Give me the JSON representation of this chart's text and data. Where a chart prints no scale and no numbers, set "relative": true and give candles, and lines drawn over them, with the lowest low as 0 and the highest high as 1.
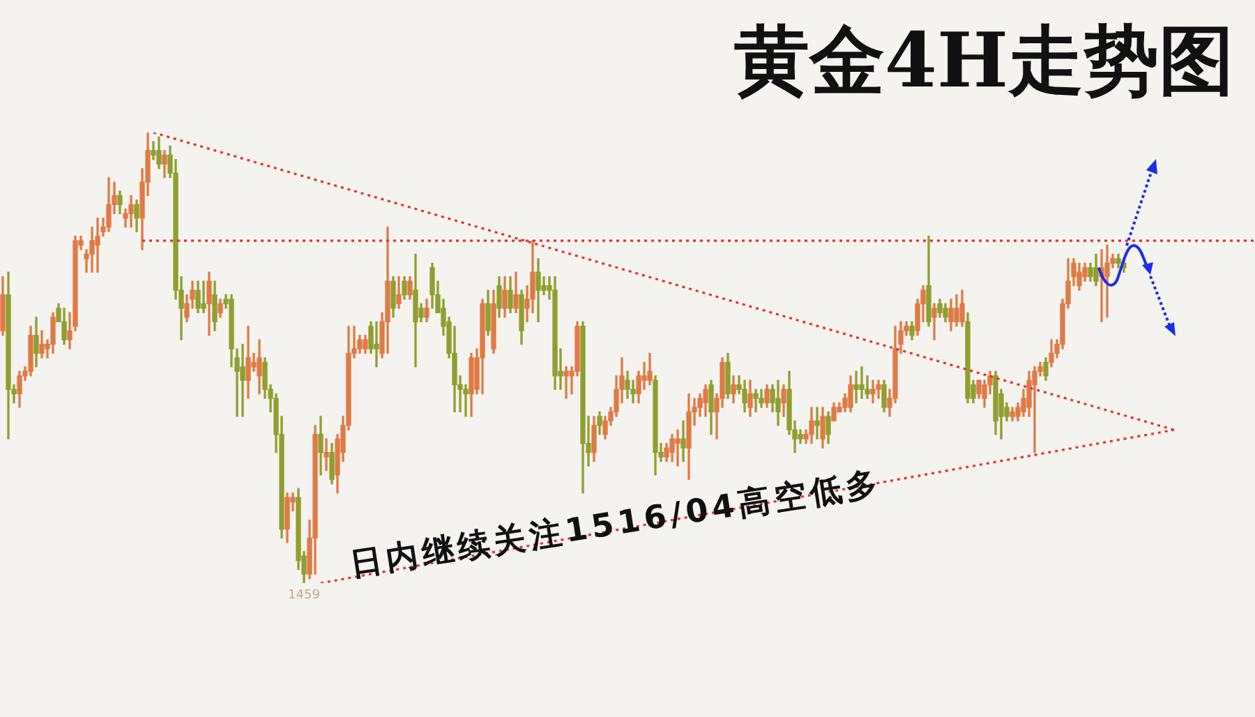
{
  "chart_data": {
    "type": "candlestick",
    "title": "黄金4H走势图",
    "relative": true,
    "tick_labels": false,
    "legend": false,
    "categories": [
      null,
      null,
      null,
      null,
      null,
      null,
      null,
      null,
      null,
      null,
      null,
      null,
      null,
      null,
      null,
      null,
      null,
      null,
      null,
      null,
      null,
      null,
      null,
      null,
      null,
      null,
      null,
      null,
      null,
      null,
      null,
      null,
      null,
      null,
      null,
      null,
      null,
      null,
      null,
      null,
      null,
      null,
      null,
      null,
      null,
      null,
      null,
      null,
      null,
      null,
      null,
      null,
      null,
      null,
      null,
      null,
      null,
      null,
      null,
      null,
      null,
      null,
      null,
      null,
      null,
      null,
      null,
      null,
      null,
      null,
      null,
      null,
      null,
      null,
      null,
      null,
      null,
      null,
      null,
      null,
      null,
      null,
      null,
      null,
      null,
      null,
      null,
      null,
      null,
      null,
      null,
      null,
      null,
      null,
      null,
      null,
      null,
      null,
      null,
      null,
      null,
      null,
      null,
      null,
      null,
      null,
      null,
      null,
      null,
      null,
      null,
      null,
      null,
      null,
      null,
      null,
      null,
      null,
      null,
      null,
      null,
      null,
      null,
      null,
      null,
      null,
      null,
      null,
      null,
      null,
      null,
      null,
      null,
      null,
      null,
      null,
      null,
      null,
      null,
      null,
      null,
      null,
      null,
      null,
      null,
      null,
      null,
      null,
      null,
      null,
      null,
      null,
      null,
      null,
      null,
      null,
      null,
      null,
      null,
      null,
      null,
      null,
      null,
      null,
      null,
      null,
      null,
      null,
      null,
      null,
      null,
      null,
      null,
      null,
      null,
      null,
      null,
      null,
      null,
      null,
      null,
      null,
      null,
      null,
      null,
      null,
      null,
      null,
      null,
      null,
      null,
      null,
      null,
      null,
      null,
      null,
      null,
      null,
      null,
      null,
      null,
      null,
      null,
      null,
      null,
      null,
      null,
      null,
      null,
      null,
      null,
      null,
      null,
      null,
      null,
      null,
      null,
      null,
      null,
      null,
      null,
      null,
      null,
      null,
      null
    ],
    "series": [
      {
        "type": "candlestick",
        "ohlc": [
          [
            0.56,
            0.68,
            0.55,
            0.64
          ],
          [
            0.64,
            0.69,
            0.32,
            0.43
          ],
          [
            0.43,
            0.44,
            0.4,
            0.42
          ],
          [
            0.42,
            0.47,
            0.39,
            0.46
          ],
          [
            0.46,
            0.48,
            0.45,
            0.47
          ],
          [
            0.47,
            0.57,
            0.46,
            0.55
          ],
          [
            0.55,
            0.59,
            0.48,
            0.51
          ],
          [
            0.51,
            0.56,
            0.5,
            0.53
          ],
          [
            0.52,
            0.54,
            0.5,
            0.53
          ],
          [
            0.53,
            0.6,
            0.51,
            0.59
          ],
          [
            0.61,
            0.62,
            0.58,
            0.58
          ],
          [
            0.58,
            0.61,
            0.53,
            0.54
          ],
          [
            0.54,
            0.6,
            0.52,
            0.56
          ],
          [
            0.57,
            0.77,
            0.56,
            0.76
          ],
          [
            0.75,
            0.77,
            0.74,
            0.76
          ],
          [
            0.72,
            0.74,
            0.69,
            0.73
          ],
          [
            0.73,
            0.79,
            0.69,
            0.76
          ],
          [
            0.75,
            0.81,
            0.69,
            0.77
          ],
          [
            0.78,
            0.81,
            0.77,
            0.79
          ],
          [
            0.79,
            0.9,
            0.78,
            0.84
          ],
          [
            0.84,
            0.89,
            0.82,
            0.86
          ],
          [
            0.86,
            0.87,
            0.82,
            0.84
          ],
          [
            0.81,
            0.83,
            0.79,
            0.82
          ],
          [
            0.82,
            0.86,
            0.79,
            0.84
          ],
          [
            0.84,
            0.85,
            0.78,
            0.81
          ],
          [
            0.81,
            0.92,
            0.74,
            0.89
          ],
          [
            0.89,
            1.0,
            0.86,
            0.96
          ],
          [
            0.96,
            0.98,
            0.94,
            0.95
          ],
          [
            0.96,
            0.99,
            0.92,
            0.93
          ],
          [
            0.93,
            0.96,
            0.9,
            0.95
          ],
          [
            0.95,
            0.97,
            0.9,
            0.91
          ],
          [
            0.91,
            0.94,
            0.63,
            0.65
          ],
          [
            0.65,
            0.68,
            0.54,
            0.61
          ],
          [
            0.59,
            0.64,
            0.58,
            0.62
          ],
          [
            0.63,
            0.67,
            0.61,
            0.65
          ],
          [
            0.65,
            0.67,
            0.6,
            0.61
          ],
          [
            0.62,
            0.67,
            0.6,
            0.61
          ],
          [
            0.62,
            0.69,
            0.55,
            0.67
          ],
          [
            0.64,
            0.67,
            0.56,
            0.58
          ],
          [
            0.6,
            0.63,
            0.59,
            0.62
          ],
          [
            0.63,
            0.64,
            0.61,
            0.62
          ],
          [
            0.63,
            0.64,
            0.48,
            0.52
          ],
          [
            0.5,
            0.52,
            0.37,
            0.47
          ],
          [
            0.48,
            0.53,
            0.37,
            0.45
          ],
          [
            0.45,
            0.57,
            0.41,
            0.5
          ],
          [
            0.48,
            0.51,
            0.47,
            0.49
          ],
          [
            0.46,
            0.54,
            0.42,
            0.5
          ],
          [
            0.49,
            0.5,
            0.41,
            0.43
          ],
          [
            0.43,
            0.44,
            0.38,
            0.41
          ],
          [
            0.41,
            0.42,
            0.29,
            0.33
          ],
          [
            0.33,
            0.37,
            0.1,
            0.12
          ],
          [
            0.12,
            0.2,
            0.09,
            0.19
          ],
          [
            0.18,
            0.2,
            0.16,
            0.19
          ],
          [
            0.19,
            0.21,
            0.03,
            0.05
          ],
          [
            0.06,
            0.07,
            0,
            0.02
          ],
          [
            0.02,
            0.14,
            0.01,
            0.1
          ],
          [
            0.1,
            0.35,
            0.02,
            0.33
          ],
          [
            0.33,
            0.37,
            0.24,
            0.29
          ],
          [
            0.28,
            0.32,
            0.25,
            0.29
          ],
          [
            0.29,
            0.31,
            0.22,
            0.23
          ],
          [
            0.24,
            0.33,
            0.2,
            0.32
          ],
          [
            0.29,
            0.37,
            0.27,
            0.35
          ],
          [
            0.35,
            0.57,
            0.34,
            0.51
          ],
          [
            0.51,
            0.57,
            0.5,
            0.52
          ],
          [
            0.52,
            0.55,
            0.51,
            0.54
          ],
          [
            0.52,
            0.55,
            0.51,
            0.54
          ],
          [
            0.57,
            0.58,
            0.51,
            0.52
          ],
          [
            0.53,
            0.58,
            0.48,
            0.52
          ],
          [
            0.51,
            0.6,
            0.5,
            0.58
          ],
          [
            0.58,
            0.79,
            0.51,
            0.67
          ],
          [
            0.67,
            0.68,
            0.59,
            0.61
          ],
          [
            0.62,
            0.68,
            0.61,
            0.64
          ],
          [
            0.67,
            0.68,
            0.63,
            0.64
          ],
          [
            0.64,
            0.68,
            0.63,
            0.67
          ],
          [
            0.65,
            0.73,
            0.48,
            0.58
          ],
          [
            0.61,
            0.62,
            0.58,
            0.59
          ],
          [
            0.59,
            0.63,
            0.58,
            0.61
          ],
          [
            0.7,
            0.71,
            0.61,
            0.64
          ],
          [
            0.64,
            0.67,
            0.6,
            0.6
          ],
          [
            0.61,
            0.63,
            0.55,
            0.57
          ],
          [
            0.58,
            0.59,
            0.5,
            0.51
          ],
          [
            0.51,
            0.57,
            0.38,
            0.44
          ],
          [
            0.44,
            0.46,
            0.38,
            0.43
          ],
          [
            0.43,
            0.44,
            0.37,
            0.42
          ],
          [
            0.42,
            0.51,
            0.37,
            0.5
          ],
          [
            0.43,
            0.52,
            0.42,
            0.5
          ],
          [
            0.5,
            0.63,
            0.42,
            0.62
          ],
          [
            0.62,
            0.65,
            0.55,
            0.56
          ],
          [
            0.52,
            0.65,
            0.51,
            0.62
          ],
          [
            0.66,
            0.68,
            0.59,
            0.61
          ],
          [
            0.61,
            0.68,
            0.59,
            0.65
          ],
          [
            0.65,
            0.68,
            0.6,
            0.61
          ],
          [
            0.61,
            0.69,
            0.6,
            0.64
          ],
          [
            0.64,
            0.65,
            0.53,
            0.56
          ],
          [
            0.61,
            0.66,
            0.58,
            0.63
          ],
          [
            0.63,
            0.76,
            0.6,
            0.69
          ],
          [
            0.69,
            0.72,
            0.58,
            0.65
          ],
          [
            0.66,
            0.68,
            0.64,
            0.65
          ],
          [
            0.66,
            0.68,
            0.63,
            0.65
          ],
          [
            0.65,
            0.68,
            0.43,
            0.46
          ],
          [
            0.47,
            0.52,
            0.43,
            0.46
          ],
          [
            0.46,
            0.48,
            0.41,
            0.47
          ],
          [
            0.46,
            0.48,
            0.42,
            0.47
          ],
          [
            0.47,
            0.58,
            0.46,
            0.57
          ],
          [
            0.57,
            0.58,
            0.2,
            0.31
          ],
          [
            0.31,
            0.37,
            0.26,
            0.29
          ],
          [
            0.29,
            0.37,
            0.27,
            0.35
          ],
          [
            0.37,
            0.38,
            0.33,
            0.35
          ],
          [
            0.33,
            0.37,
            0.32,
            0.36
          ],
          [
            0.36,
            0.39,
            0.35,
            0.38
          ],
          [
            0.38,
            0.46,
            0.37,
            0.43
          ],
          [
            0.43,
            0.5,
            0.4,
            0.46
          ],
          [
            0.45,
            0.47,
            0.41,
            0.43
          ],
          [
            0.43,
            0.45,
            0.4,
            0.42
          ],
          [
            0.42,
            0.47,
            0.4,
            0.46
          ],
          [
            0.45,
            0.49,
            0.43,
            0.46
          ],
          [
            0.45,
            0.51,
            0.44,
            0.47
          ],
          [
            0.45,
            0.46,
            0.24,
            0.29
          ],
          [
            0.29,
            0.31,
            0.27,
            0.28
          ],
          [
            0.28,
            0.31,
            0.27,
            0.3
          ],
          [
            0.29,
            0.33,
            0.27,
            0.32
          ],
          [
            0.31,
            0.34,
            0.26,
            0.32
          ],
          [
            0.32,
            0.36,
            0.27,
            0.3
          ],
          [
            0.3,
            0.42,
            0.23,
            0.38
          ],
          [
            0.38,
            0.41,
            0.35,
            0.39
          ],
          [
            0.39,
            0.42,
            0.37,
            0.41
          ],
          [
            0.4,
            0.44,
            0.37,
            0.43
          ],
          [
            0.44,
            0.45,
            0.33,
            0.38
          ],
          [
            0.38,
            0.42,
            0.32,
            0.41
          ],
          [
            0.41,
            0.5,
            0.39,
            0.49
          ],
          [
            0.49,
            0.51,
            0.41,
            0.42
          ],
          [
            0.42,
            0.46,
            0.4,
            0.44
          ],
          [
            0.44,
            0.46,
            0.42,
            0.43
          ],
          [
            0.43,
            0.45,
            0.38,
            0.4
          ],
          [
            0.39,
            0.45,
            0.37,
            0.42
          ],
          [
            0.42,
            0.43,
            0.38,
            0.41
          ],
          [
            0.41,
            0.43,
            0.39,
            0.4
          ],
          [
            0.4,
            0.44,
            0.39,
            0.43
          ],
          [
            0.43,
            0.44,
            0.38,
            0.4
          ],
          [
            0.41,
            0.45,
            0.35,
            0.38
          ],
          [
            0.4,
            0.44,
            0.37,
            0.43
          ],
          [
            0.43,
            0.47,
            0.33,
            0.34
          ],
          [
            0.34,
            0.36,
            0.29,
            0.32
          ],
          [
            0.33,
            0.34,
            0.31,
            0.32
          ],
          [
            0.32,
            0.34,
            0.31,
            0.33
          ],
          [
            0.33,
            0.39,
            0.31,
            0.36
          ],
          [
            0.36,
            0.39,
            0.32,
            0.35
          ],
          [
            0.32,
            0.39,
            0.3,
            0.37
          ],
          [
            0.37,
            0.38,
            0.31,
            0.33
          ],
          [
            0.36,
            0.4,
            0.36,
            0.39
          ],
          [
            0.38,
            0.4,
            0.38,
            0.39
          ],
          [
            0.39,
            0.42,
            0.38,
            0.41
          ],
          [
            0.39,
            0.46,
            0.38,
            0.44
          ],
          [
            0.44,
            0.47,
            0.4,
            0.43
          ],
          [
            0.44,
            0.48,
            0.41,
            0.43
          ],
          [
            0.43,
            0.46,
            0.41,
            0.42
          ],
          [
            0.42,
            0.45,
            0.4,
            0.43
          ],
          [
            0.43,
            0.45,
            0.41,
            0.44
          ],
          [
            0.44,
            0.45,
            0.38,
            0.39
          ],
          [
            0.39,
            0.43,
            0.37,
            0.41
          ],
          [
            0.41,
            0.57,
            0.4,
            0.52
          ],
          [
            0.53,
            0.58,
            0.51,
            0.56
          ],
          [
            0.56,
            0.58,
            0.55,
            0.57
          ],
          [
            0.57,
            0.58,
            0.54,
            0.55
          ],
          [
            0.56,
            0.63,
            0.55,
            0.62
          ],
          [
            0.62,
            0.66,
            0.58,
            0.65
          ],
          [
            0.66,
            0.77,
            0.57,
            0.58
          ],
          [
            0.59,
            0.62,
            0.54,
            0.61
          ],
          [
            0.62,
            0.63,
            0.59,
            0.6
          ],
          [
            0.61,
            0.62,
            0.58,
            0.59
          ],
          [
            0.58,
            0.63,
            0.56,
            0.61
          ],
          [
            0.58,
            0.64,
            0.57,
            0.61
          ],
          [
            0.58,
            0.65,
            0.57,
            0.62
          ],
          [
            0.58,
            0.6,
            0.4,
            0.41
          ],
          [
            0.44,
            0.45,
            0.4,
            0.41
          ],
          [
            0.42,
            0.45,
            0.41,
            0.45
          ],
          [
            0.41,
            0.45,
            0.39,
            0.44
          ],
          [
            0.44,
            0.47,
            0.42,
            0.46
          ],
          [
            0.46,
            0.47,
            0.33,
            0.36
          ],
          [
            0.42,
            0.43,
            0.32,
            0.37
          ],
          [
            0.39,
            0.4,
            0.36,
            0.37
          ],
          [
            0.37,
            0.39,
            0.36,
            0.38
          ],
          [
            0.37,
            0.4,
            0.36,
            0.39
          ],
          [
            0.38,
            0.43,
            0.37,
            0.41
          ],
          [
            0.39,
            0.47,
            0.37,
            0.45
          ],
          [
            0.44,
            0.48,
            0.29,
            0.47
          ],
          [
            0.47,
            0.49,
            0.46,
            0.48
          ],
          [
            0.49,
            0.5,
            0.45,
            0.46
          ],
          [
            0.49,
            0.54,
            0.48,
            0.51
          ],
          [
            0.51,
            0.54,
            0.5,
            0.53
          ],
          [
            0.53,
            0.63,
            0.52,
            0.62
          ],
          [
            0.62,
            0.72,
            0.61,
            0.67
          ],
          [
            0.68,
            0.72,
            0.66,
            0.71
          ],
          [
            0.66,
            0.71,
            0.65,
            0.69
          ],
          [
            0.68,
            0.71,
            0.67,
            0.7
          ],
          [
            0.7,
            0.71,
            0.67,
            0.68
          ],
          [
            0.7,
            0.73,
            0.66,
            0.67
          ],
          [
            0.68,
            0.74,
            0.58,
            0.7
          ],
          [
            0.68,
            0.75,
            0.59,
            0.71
          ],
          [
            0.71,
            0.73,
            0.7,
            0.72
          ],
          [
            0.72,
            0.73,
            0.7,
            0.71
          ],
          [
            0.71,
            0.72,
            0.69,
            0.7
          ],
          null,
          null,
          null,
          null,
          null,
          null,
          null,
          null,
          null,
          null,
          null,
          null,
          null,
          null,
          null,
          null,
          null,
          null,
          null,
          null,
          null,
          null,
          null
        ],
        "colors": [
          "#e07a45",
          "#8f9f30",
          "#8f9f30",
          "#e07a45",
          "#e07a45",
          "#e07a45",
          "#8f9f30",
          "#e07a45",
          "#e07a45",
          "#e07a45",
          "#8f9f30",
          "#8f9f30",
          "#e07a45",
          "#e07a45",
          "#e07a45",
          "#e07a45",
          "#e07a45",
          "#e07a45",
          "#e07a45",
          "#e07a45",
          "#e07a45",
          "#8f9f30",
          "#e07a45",
          "#e07a45",
          "#8f9f30",
          "#e07a45",
          "#e07a45",
          "#8f9f30",
          "#8f9f30",
          "#e07a45",
          "#8f9f30",
          "#8f9f30",
          "#8f9f30",
          "#e07a45",
          "#e07a45",
          "#8f9f30",
          "#8f9f30",
          "#e07a45",
          "#8f9f30",
          "#e07a45",
          "#8f9f30",
          "#8f9f30",
          "#8f9f30",
          "#8f9f30",
          "#e07a45",
          "#e07a45",
          "#e07a45",
          "#8f9f30",
          "#8f9f30",
          "#8f9f30",
          "#8f9f30",
          "#e07a45",
          "#e07a45",
          "#8f9f30",
          "#8f9f30",
          "#e07a45",
          "#e07a45",
          "#8f9f30",
          "#e07a45",
          "#8f9f30",
          "#e07a45",
          "#e07a45",
          "#e07a45",
          "#e07a45",
          "#e07a45",
          "#e07a45",
          "#8f9f30",
          "#8f9f30",
          "#e07a45",
          "#e07a45",
          "#8f9f30",
          "#e07a45",
          "#8f9f30",
          "#e07a45",
          "#8f9f30",
          "#8f9f30",
          "#e07a45",
          "#8f9f30",
          "#8f9f30",
          "#8f9f30",
          "#8f9f30",
          "#8f9f30",
          "#8f9f30",
          "#8f9f30",
          "#e07a45",
          "#e07a45",
          "#e07a45",
          "#8f9f30",
          "#e07a45",
          "#8f9f30",
          "#e07a45",
          "#8f9f30",
          "#e07a45",
          "#8f9f30",
          "#e07a45",
          "#e07a45",
          "#8f9f30",
          "#8f9f30",
          "#8f9f30",
          "#8f9f30",
          "#8f9f30",
          "#e07a45",
          "#e07a45",
          "#e07a45",
          "#8f9f30",
          "#8f9f30",
          "#e07a45",
          "#8f9f30",
          "#e07a45",
          "#e07a45",
          "#e07a45",
          "#e07a45",
          "#8f9f30",
          "#8f9f30",
          "#e07a45",
          "#e07a45",
          "#e07a45",
          "#8f9f30",
          "#8f9f30",
          "#e07a45",
          "#e07a45",
          "#e07a45",
          "#8f9f30",
          "#e07a45",
          "#e07a45",
          "#e07a45",
          "#e07a45",
          "#8f9f30",
          "#e07a45",
          "#e07a45",
          "#8f9f30",
          "#e07a45",
          "#8f9f30",
          "#8f9f30",
          "#e07a45",
          "#8f9f30",
          "#8f9f30",
          "#e07a45",
          "#8f9f30",
          "#8f9f30",
          "#e07a45",
          "#8f9f30",
          "#8f9f30",
          "#8f9f30",
          "#e07a45",
          "#e07a45",
          "#8f9f30",
          "#e07a45",
          "#8f9f30",
          "#e07a45",
          "#e07a45",
          "#e07a45",
          "#e07a45",
          "#8f9f30",
          "#8f9f30",
          "#8f9f30",
          "#e07a45",
          "#e07a45",
          "#8f9f30",
          "#e07a45",
          "#e07a45",
          "#e07a45",
          "#e07a45",
          "#8f9f30",
          "#e07a45",
          "#e07a45",
          "#8f9f30",
          "#e07a45",
          "#8f9f30",
          "#8f9f30",
          "#e07a45",
          "#e07a45",
          "#e07a45",
          "#8f9f30",
          "#8f9f30",
          "#e07a45",
          "#e07a45",
          "#e07a45",
          "#8f9f30",
          "#8f9f30",
          "#8f9f30",
          "#e07a45",
          "#e07a45",
          "#e07a45",
          "#e07a45",
          "#e07a45",
          "#e07a45",
          "#8f9f30",
          "#e07a45",
          "#e07a45",
          "#e07a45",
          "#e07a45",
          "#e07a45",
          "#e07a45",
          "#e07a45",
          "#8f9f30",
          "#8f9f30",
          "#e07a45",
          "#e07a45",
          "#e07a45",
          "#8f9f30",
          "#8f9f30",
          null,
          null,
          null,
          null,
          null,
          null,
          null,
          null,
          null,
          null,
          null,
          null,
          null,
          null,
          null,
          null,
          null,
          null,
          null,
          null,
          null,
          null,
          null
        ]
      },
      {
        "type": "line",
        "color": "#e8302a",
        "line_style": "dotted",
        "values": [
          null,
          null,
          null,
          null,
          null,
          null,
          null,
          null,
          null,
          null,
          null,
          null,
          null,
          null,
          null,
          null,
          null,
          null,
          null,
          null,
          null,
          null,
          null,
          null,
          null,
          null,
          null,
          1.0,
          null,
          null,
          null,
          null,
          null,
          null,
          null,
          null,
          null,
          null,
          null,
          null,
          null,
          null,
          null,
          null,
          null,
          null,
          null,
          null,
          null,
          null,
          null,
          null,
          null,
          null,
          null,
          null,
          null,
          null,
          null,
          null,
          null,
          null,
          null,
          null,
          null,
          null,
          null,
          null,
          null,
          null,
          null,
          null,
          null,
          null,
          null,
          null,
          null,
          null,
          null,
          null,
          null,
          null,
          null,
          null,
          null,
          null,
          null,
          null,
          null,
          null,
          null,
          null,
          null,
          null,
          null,
          null,
          null,
          null,
          null,
          null,
          null,
          null,
          null,
          null,
          null,
          null,
          null,
          null,
          null,
          null,
          null,
          null,
          null,
          null,
          null,
          null,
          null,
          null,
          null,
          null,
          null,
          null,
          null,
          null,
          null,
          null,
          null,
          null,
          null,
          null,
          null,
          null,
          null,
          null,
          null,
          null,
          null,
          null,
          null,
          null,
          null,
          null,
          null,
          null,
          null,
          null,
          null,
          null,
          null,
          null,
          null,
          null,
          null,
          null,
          null,
          null,
          null,
          null,
          null,
          null,
          null,
          null,
          null,
          null,
          null,
          null,
          null,
          null,
          null,
          null,
          null,
          null,
          null,
          null,
          null,
          null,
          null,
          null,
          null,
          null,
          null,
          null,
          null,
          null,
          null,
          null,
          null,
          null,
          null,
          null,
          null,
          null,
          null,
          null,
          null,
          null,
          null,
          null,
          null,
          null,
          null,
          null,
          null,
          null,
          null,
          null,
          null,
          null,
          null,
          null,
          0.34,
          null,
          null,
          null,
          null,
          null,
          null,
          null,
          null,
          null,
          null,
          null,
          null,
          null,
          null
        ]
      },
      {
        "type": "line",
        "color": "#e8302a",
        "line_style": "dotted",
        "values": [
          null,
          null,
          null,
          null,
          null,
          null,
          null,
          null,
          null,
          null,
          null,
          null,
          null,
          null,
          null,
          null,
          null,
          null,
          null,
          null,
          null,
          null,
          null,
          null,
          null,
          null,
          null,
          null,
          null,
          null,
          null,
          null,
          null,
          null,
          null,
          null,
          null,
          null,
          null,
          null,
          null,
          null,
          null,
          null,
          null,
          null,
          null,
          null,
          null,
          null,
          null,
          null,
          null,
          null,
          null,
          null,
          null,
          0.0,
          null,
          null,
          null,
          null,
          null,
          null,
          null,
          null,
          null,
          null,
          null,
          null,
          null,
          null,
          null,
          null,
          null,
          null,
          null,
          null,
          null,
          null,
          null,
          null,
          null,
          null,
          null,
          null,
          null,
          null,
          null,
          null,
          null,
          null,
          null,
          null,
          null,
          null,
          null,
          null,
          null,
          null,
          null,
          null,
          null,
          null,
          null,
          null,
          null,
          null,
          null,
          null,
          null,
          null,
          null,
          null,
          null,
          null,
          null,
          null,
          null,
          null,
          null,
          null,
          null,
          null,
          null,
          null,
          null,
          null,
          null,
          null,
          null,
          null,
          null,
          null,
          null,
          null,
          null,
          null,
          null,
          null,
          null,
          null,
          null,
          null,
          null,
          null,
          null,
          null,
          null,
          null,
          null,
          null,
          null,
          null,
          null,
          null,
          null,
          null,
          null,
          null,
          null,
          null,
          null,
          null,
          null,
          null,
          null,
          null,
          null,
          null,
          null,
          null,
          null,
          null,
          null,
          null,
          null,
          null,
          null,
          null,
          null,
          null,
          null,
          null,
          null,
          null,
          null,
          null,
          null,
          null,
          null,
          null,
          null,
          null,
          null,
          null,
          null,
          null,
          null,
          null,
          null,
          null,
          null,
          null,
          null,
          null,
          null,
          null,
          null,
          null,
          0.34,
          null,
          null,
          null,
          null,
          null,
          null,
          null,
          null,
          null,
          null,
          null,
          null,
          null,
          null
        ]
      }
    ],
    "ref_lines": [
      {
        "axis": "y",
        "value": 0.76,
        "color": "#e8302a",
        "line_style": "dotted"
      }
    ],
    "annotations": [
      "日内继续关注1516/04高空低多",
      {
        "text": "1459",
        "y": 0
      }
    ]
  }
}
